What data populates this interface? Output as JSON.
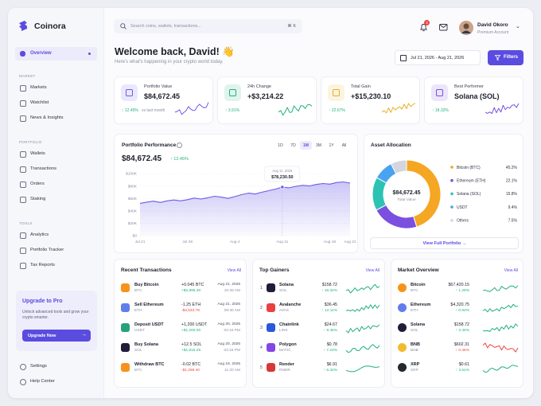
{
  "brand": "Coinora",
  "search": {
    "placeholder": "Search coins, wallets, transactions...",
    "shortcut": "⌘ K"
  },
  "notifications": 3,
  "user": {
    "name": "David Okoro",
    "plan": "Premium Account"
  },
  "sidebar": {
    "overview": "Overview",
    "sections": [
      {
        "title": "MARKET",
        "items": [
          "Markets",
          "Watchlist",
          "News & Insights"
        ]
      },
      {
        "title": "PORTFOLIO",
        "items": [
          "Wallets",
          "Transactions",
          "Orders",
          "Staking"
        ]
      },
      {
        "title": "TOOLS",
        "items": [
          "Analytics",
          "Portfolio Tracker",
          "Tax Reports"
        ]
      }
    ],
    "upgrade": {
      "title": "Upgrade to Pro",
      "text": "Unlock advanced tools and grow your crypto smarter.",
      "button": "Upgrade Now"
    },
    "footer": [
      "Settings",
      "Help Center"
    ]
  },
  "welcome": {
    "title": "Welcome back, David! 👋",
    "subtitle": "Here's what's happening in your crypto world today.",
    "date_range": "Jul 21, 2026 - Aug 21, 2026",
    "filters": "Filters"
  },
  "stats": [
    {
      "label": "Portfolio Value",
      "value": "$84,672.45",
      "change": "↑ 12.45%",
      "note": "vs last month",
      "color": "#6b5ce7"
    },
    {
      "label": "24h Change",
      "value": "+$3,214.22",
      "change": "↑ 3.91%",
      "color": "#22b07d"
    },
    {
      "label": "Total Gain",
      "value": "+$15,230.10",
      "change": "↑ 22.67%",
      "color": "#e8b021"
    },
    {
      "label": "Best Performer",
      "value": "Solana (SOL)",
      "change": "↑ 18.32%",
      "color": "#7b4fe0"
    }
  ],
  "performance": {
    "title": "Portfolio Performance",
    "ranges": [
      "1D",
      "7D",
      "1M",
      "3M",
      "1Y",
      "All"
    ],
    "active_range": "1M",
    "value": "$84,672.45",
    "change": "↑ 12.45%",
    "chart_data": {
      "type": "line",
      "x": [
        "Jul 21",
        "Jul 22",
        "Jul 23",
        "Jul 24",
        "Jul 25",
        "Jul 26",
        "Jul 27",
        "Jul 28",
        "Jul 29",
        "Jul 30",
        "Jul 31",
        "Aug 1",
        "Aug 2",
        "Aug 3",
        "Aug 4",
        "Aug 5",
        "Aug 6",
        "Aug 7",
        "Aug 8",
        "Aug 9",
        "Aug 10",
        "Aug 11",
        "Aug 12",
        "Aug 13",
        "Aug 14",
        "Aug 15",
        "Aug 16",
        "Aug 17",
        "Aug 18",
        "Aug 19",
        "Aug 20",
        "Aug 21"
      ],
      "values": [
        52000,
        54000,
        55500,
        53500,
        56000,
        57500,
        56000,
        58000,
        60500,
        59000,
        61000,
        63500,
        62000,
        60000,
        63000,
        66000,
        68500,
        67000,
        70000,
        72500,
        75000,
        78230.5,
        77000,
        79500,
        81000,
        80000,
        82500,
        84000,
        83000,
        85500,
        86500,
        84672.45
      ],
      "value_labels": [
        null,
        null,
        null,
        null,
        null,
        null,
        null,
        null,
        null,
        null,
        null,
        null,
        null,
        null,
        null,
        null,
        null,
        null,
        null,
        null,
        null,
        "$78,230.50",
        null,
        null,
        null,
        null,
        null,
        null,
        null,
        null,
        null,
        null
      ],
      "tooltip_title": "Aug 11, 2026",
      "color": "#6b5ce7",
      "ylim": [
        0,
        100000
      ],
      "yticks": [
        {
          "value": 0,
          "label": "$0"
        },
        {
          "value": 20000,
          "label": "$20K"
        },
        {
          "value": 40000,
          "label": "$40K"
        },
        {
          "value": 60000,
          "label": "$60K"
        },
        {
          "value": 80000,
          "label": "$80K"
        },
        {
          "value": 100000,
          "label": "$100K"
        }
      ],
      "xticks": [
        "Jul 21",
        "Jul 28",
        "Aug 4",
        "Aug 11",
        "Aug 18",
        "Aug 21"
      ],
      "grid": true
    }
  },
  "allocation": {
    "title": "Asset Allocation",
    "total": "$84,672.45",
    "total_label": "Total Value",
    "button": "View Full Portfolio →",
    "chart_data": {
      "type": "donut",
      "categories": [
        "Bitcoin (BTC)",
        "Ethereum (ETH)",
        "Solana (SOL)",
        "USDT",
        "Others"
      ],
      "values": [
        45.2,
        22.1,
        15.8,
        9.4,
        7.5
      ],
      "value_labels": [
        "45.2%",
        "22.1%",
        "15.8%",
        "9.4%",
        "7.5%"
      ],
      "colors": [
        "#f5a623",
        "#7b4fe0",
        "#2cc3b5",
        "#4aa3f0",
        "#d3d6de"
      ]
    }
  },
  "transactions": {
    "title": "Recent Transactions",
    "view_all": "View All",
    "rows": [
      {
        "name": "Buy Bitcoin",
        "symbol": "BTC",
        "amount": "+0.045 BTC",
        "value": "+$2,895.30",
        "date": "Aug 21, 2026",
        "time": "10:45 AM",
        "color": "#f7931a"
      },
      {
        "name": "Sell Ethereum",
        "symbol": "ETH",
        "amount": "-1.25 ETH",
        "value": "-$4,533.78",
        "date": "Aug 21, 2026",
        "time": "09:30 AM",
        "color": "#627eea"
      },
      {
        "name": "Deposit USDT",
        "symbol": "USDT",
        "amount": "+1,200 USDT",
        "value": "+$1,200.00",
        "date": "Aug 20, 2026",
        "time": "04:15 PM",
        "color": "#26a17b"
      },
      {
        "name": "Buy Solana",
        "symbol": "SOL",
        "amount": "+12.5 SOL",
        "value": "+$1,815.25",
        "date": "Aug 20, 2026",
        "time": "02:15 PM",
        "color": "#1f1d3a"
      },
      {
        "name": "Withdraw BTC",
        "symbol": "BTC",
        "amount": "-0.02 BTC",
        "value": "-$1,299.40",
        "date": "Aug 19, 2026",
        "time": "11:20 AM",
        "color": "#f7931a"
      }
    ]
  },
  "gainers": {
    "title": "Top Gainers",
    "view_all": "View All",
    "rows": [
      {
        "rank": 1,
        "name": "Solana",
        "symbol": "SOL",
        "price": "$158.72",
        "change": "↑ 18.32%",
        "color": "#1f1d3a"
      },
      {
        "rank": 2,
        "name": "Avalanche",
        "symbol": "AVAX",
        "price": "$36.45",
        "change": "↑ 12.11%",
        "color": "#e84142"
      },
      {
        "rank": 3,
        "name": "Chainlink",
        "symbol": "LINK",
        "price": "$24.67",
        "change": "↑ 9.45%",
        "color": "#2a5ada"
      },
      {
        "rank": 4,
        "name": "Polygon",
        "symbol": "MATIC",
        "price": "$0.78",
        "change": "↑ 7.23%",
        "color": "#8247e5"
      },
      {
        "rank": 5,
        "name": "Render",
        "symbol": "RNDR",
        "price": "$6.91",
        "change": "↑ 6.32%",
        "color": "#d93636"
      }
    ]
  },
  "market": {
    "title": "Market Overview",
    "view_all": "View All",
    "rows": [
      {
        "name": "Bitcoin",
        "symbol": "BTC",
        "price": "$67,420.15",
        "change": "↑ 1.28%",
        "color": "#f7931a"
      },
      {
        "name": "Ethereum",
        "symbol": "ETH",
        "price": "$4,320.75",
        "change": "↑ 0.92%",
        "color": "#627eea"
      },
      {
        "name": "Solana",
        "symbol": "SOL",
        "price": "$158.72",
        "change": "↑ 3.45%",
        "color": "#1f1d3a"
      },
      {
        "name": "BNB",
        "symbol": "BNB",
        "price": "$602.31",
        "change": "↓ 0.45%",
        "color": "#f3ba2f"
      },
      {
        "name": "XRP",
        "symbol": "XRP",
        "price": "$0.61",
        "change": "↑ 3.51%",
        "color": "#23292f"
      }
    ]
  }
}
